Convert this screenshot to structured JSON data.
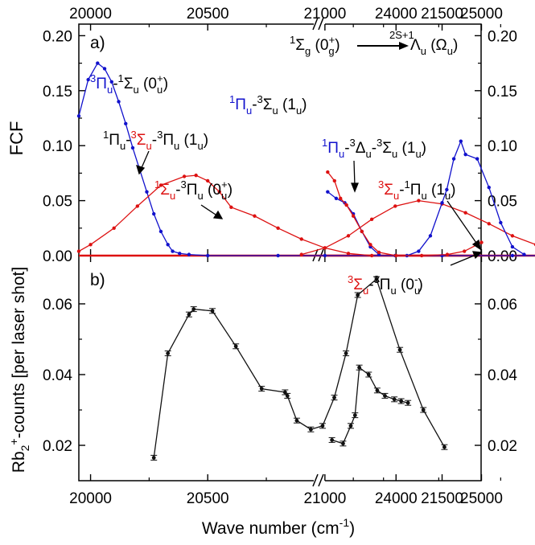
{
  "chart_data": [
    {
      "panel": "a)",
      "type": "line",
      "ylabel": "FCF",
      "xlabel_top": "",
      "ylim": [
        0,
        0.21
      ],
      "yticks": [
        "0.00",
        "0.05",
        "0.10",
        "0.15",
        "0.20"
      ],
      "xticks_top_left": [
        "20000",
        "20500",
        "21000",
        "21500"
      ],
      "xticks_top_right": [
        "24000",
        "25000"
      ],
      "x_segments": [
        [
          19950,
          22050
        ],
        [
          23150,
          25000
        ]
      ],
      "series": [
        {
          "name": "³Πu-¹Σu (0u+)",
          "color": "#1111cc",
          "x": [
            19950,
            19990,
            20030,
            20060,
            20090,
            20120,
            20150,
            20180,
            20210,
            20240,
            20270,
            20300,
            20330,
            20350,
            20380,
            20420,
            20500,
            20800,
            21000,
            21300,
            21500,
            21800,
            22050
          ],
          "y": [
            0.127,
            0.16,
            0.175,
            0.17,
            0.158,
            0.14,
            0.12,
            0.098,
            0.078,
            0.058,
            0.038,
            0.022,
            0.01,
            0.004,
            0.002,
            0.001,
            0.0,
            0.0,
            0.0,
            0.0,
            0.0,
            0.0,
            0.0
          ]
        },
        {
          "name": "¹Πu-³Σu-³Πu (1u)",
          "color": "#dd1111",
          "x": [
            19950,
            20000,
            20100,
            20200,
            20300,
            20400,
            20450,
            20500,
            20550,
            20600,
            20700,
            20800,
            20900,
            21000,
            21100,
            21200
          ],
          "y": [
            0.004,
            0.01,
            0.025,
            0.045,
            0.064,
            0.072,
            0.073,
            0.068,
            0.058,
            0.044,
            0.036,
            0.025,
            0.015,
            0.007,
            0.002,
            0.0
          ]
        },
        {
          "name": "¹Σu-³Πu (0u+)",
          "color": "#dd1111",
          "x": [
            20900,
            21000,
            21100,
            21200,
            21300,
            21400,
            21500,
            21600,
            21700,
            21800,
            21900,
            22000,
            22050
          ],
          "y": [
            0.001,
            0.007,
            0.018,
            0.033,
            0.045,
            0.05,
            0.047,
            0.039,
            0.029,
            0.018,
            0.01,
            0.004,
            0.002
          ]
        },
        {
          "name": "¹Πu-³Σu (1u)",
          "color": "#1111cc",
          "x": [
            21350,
            21400,
            21450,
            21500,
            21520,
            21550,
            21580,
            21600,
            21650,
            21700,
            21750,
            21800,
            21850
          ],
          "y": [
            0.0,
            0.004,
            0.018,
            0.048,
            0.06,
            0.088,
            0.104,
            0.092,
            0.088,
            0.062,
            0.03,
            0.008,
            0.001
          ]
        },
        {
          "name": "¹Πu-³Δu-³Σu (1u)",
          "color": "#1111cc",
          "x": [
            23200,
            23300,
            23400,
            23500,
            23600,
            23700,
            23800
          ],
          "y": [
            0.058,
            0.052,
            0.048,
            0.038,
            0.022,
            0.008,
            0.001
          ]
        },
        {
          "name": "³Σu-¹Πu (1u)",
          "color": "#dd1111",
          "x": [
            23200,
            23280,
            23350,
            23420,
            23500,
            23600,
            23700,
            23800,
            24000,
            24300,
            24600,
            24800,
            25000
          ],
          "y": [
            0.076,
            0.068,
            0.052,
            0.046,
            0.036,
            0.022,
            0.01,
            0.003,
            0.0,
            0.0,
            0.001,
            0.004,
            0.012
          ]
        }
      ],
      "annotations": [
        {
          "text": "a)"
        },
        {
          "text": "¹Σg (0g+)"
        },
        {
          "text": "2S+1Λu (Ωu)"
        },
        {
          "text": "³Πu-¹Σu (0u+)"
        },
        {
          "text": "¹Πu-³Σu-³Πu (1u)"
        },
        {
          "text": "¹Σu-³Πu (0u+)"
        },
        {
          "text": "¹Πu-³Σu (1u)"
        },
        {
          "text": "¹Πu-³Δu-³Σu (1u)"
        },
        {
          "text": "³Σu-¹Πu (1u)"
        },
        {
          "text": "³Σu-³Πu (0u-)"
        }
      ]
    },
    {
      "panel": "b)",
      "type": "line",
      "ylabel": "Rb2+-counts [per laser shot]",
      "xlabel": "Wave number (cm-1)",
      "ylim": [
        0.01,
        0.07
      ],
      "yticks": [
        "0.02",
        "0.04",
        "0.06"
      ],
      "xticks_bottom_left": [
        "20000",
        "20500",
        "21000",
        "21500"
      ],
      "xticks_bottom_right": [
        "24000",
        "25000"
      ],
      "series": [
        {
          "name": "",
          "color": "#111111",
          "segments": [
            {
              "x": [
                20270,
                20330,
                20420,
                20440,
                20520,
                20620,
                20730,
                20830,
                20840,
                20880,
                20940,
                20990,
                21040,
                21090,
                21140,
                21220,
                21320,
                21420,
                21510
              ],
              "y": [
                0.0165,
                0.046,
                0.057,
                0.0585,
                0.058,
                0.048,
                0.036,
                0.035,
                0.034,
                0.027,
                0.0245,
                0.0255,
                0.0335,
                0.046,
                0.0625,
                0.067,
                0.047,
                0.03,
                0.0195
              ]
            },
            {
              "x": [
                23250,
                23380,
                23470,
                23520,
                23570,
                23680,
                23780,
                23870,
                23980,
                24060,
                24140
              ],
              "y": [
                0.0215,
                0.0205,
                0.0255,
                0.0285,
                0.042,
                0.04,
                0.0355,
                0.034,
                0.033,
                0.0325,
                0.032
              ]
            }
          ]
        }
      ]
    }
  ],
  "labels": {
    "x_axis": "Wave number (cm",
    "x_axis_sup": "-1",
    "x_axis_close": ")"
  }
}
